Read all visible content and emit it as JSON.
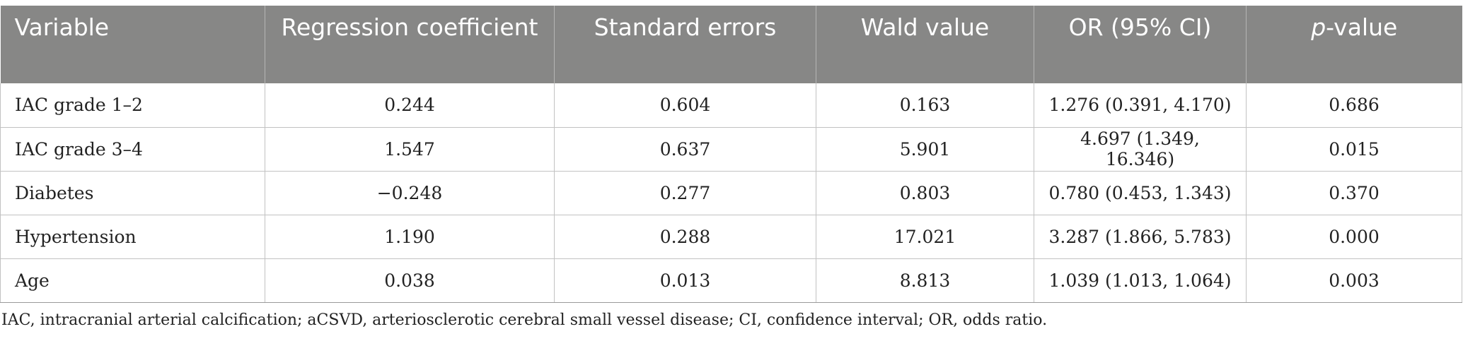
{
  "table": {
    "headers": {
      "variable": "Variable",
      "regression_coefficient": "Regression coefficient",
      "standard_errors": "Standard errors",
      "wald_value": "Wald value",
      "or_ci": "OR (95% CI)",
      "p_value_italic": "p",
      "p_value_suffix": "-value"
    },
    "rows": [
      {
        "variable": "IAC grade 1–2",
        "coef": "0.244",
        "se": "0.604",
        "wald": "0.163",
        "or": "1.276 (0.391, 4.170)",
        "p": "0.686"
      },
      {
        "variable": "IAC grade 3–4",
        "coef": "1.547",
        "se": "0.637",
        "wald": "5.901",
        "or": "4.697 (1.349, 16.346)",
        "p": "0.015"
      },
      {
        "variable": "Diabetes",
        "coef": "−0.248",
        "se": "0.277",
        "wald": "0.803",
        "or": "0.780 (0.453, 1.343)",
        "p": "0.370"
      },
      {
        "variable": "Hypertension",
        "coef": "1.190",
        "se": "0.288",
        "wald": "17.021",
        "or": "3.287 (1.866, 5.783)",
        "p": "0.000"
      },
      {
        "variable": "Age",
        "coef": "0.038",
        "se": "0.013",
        "wald": "8.813",
        "or": "1.039 (1.013, 1.064)",
        "p": "0.003"
      }
    ]
  },
  "footnote": "IAC, intracranial arterial calcification; aCSVD, arteriosclerotic cerebral small vessel disease; CI, confidence interval; OR, odds ratio."
}
